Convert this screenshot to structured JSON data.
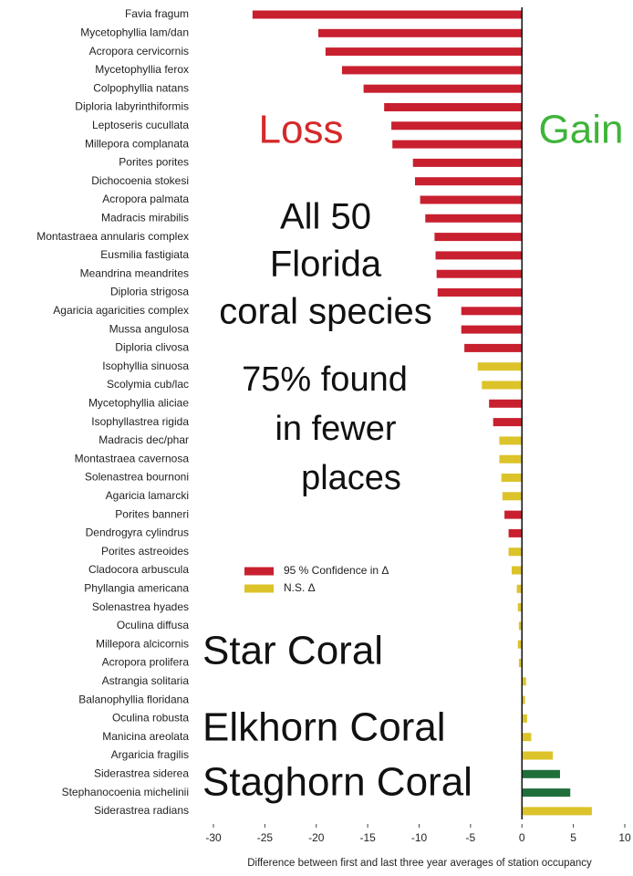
{
  "chart_data": {
    "type": "barh",
    "categories": [
      "Favia fragum",
      "Mycetophyllia lam/dan",
      "Acropora cervicornis",
      "Mycetophyllia ferox",
      "Colpophyllia natans",
      "Diploria labyrinthiformis",
      "Leptoseris cucullata",
      "Millepora complanata",
      "Porites porites",
      "Dichocoenia stokesi",
      "Acropora palmata",
      "Madracis mirabilis",
      "Montastraea annularis complex",
      "Eusmilia fastigiata",
      "Meandrina meandrites",
      "Diploria strigosa",
      "Agaricia agaricities complex",
      "Mussa angulosa",
      "Diploria clivosa",
      "Isophyllia sinuosa",
      "Scolymia cub/lac",
      "Mycetophyllia aliciae",
      "Isophyllastrea rigida",
      "Madracis dec/phar",
      "Montastraea cavernosa",
      "Solenastrea bournoni",
      "Agaricia lamarcki",
      "Porites banneri",
      "Dendrogyra cylindrus",
      "Porites astreoides",
      "Cladocora arbuscula",
      "Phyllangia americana",
      "Solenastrea hyades",
      "Oculina diffusa",
      "Millepora alcicornis",
      "Acropora prolifera",
      "Astrangia solitaria",
      "Balanophyllia floridana",
      "Oculina robusta",
      "Manicina areolata",
      "Argaricia fragilis",
      "Siderastrea siderea",
      "Stephanocoenia michelinii",
      "Siderastrea radians"
    ],
    "values": [
      -26.2,
      -19.8,
      -19.1,
      -17.5,
      -15.4,
      -13.4,
      -12.7,
      -12.6,
      -10.6,
      -10.4,
      -9.9,
      -9.4,
      -8.5,
      -8.4,
      -8.3,
      -8.2,
      -5.9,
      -5.9,
      -5.6,
      -4.3,
      -3.9,
      -3.2,
      -2.8,
      -2.2,
      -2.2,
      -2.0,
      -1.9,
      -1.7,
      -1.3,
      -1.3,
      -1.0,
      -0.5,
      -0.4,
      -0.3,
      -0.4,
      -0.3,
      0.4,
      0.3,
      0.5,
      0.9,
      3.0,
      3.7,
      4.7,
      6.8
    ],
    "colors": [
      "#c8202f",
      "#c8202f",
      "#c8202f",
      "#c8202f",
      "#c8202f",
      "#c8202f",
      "#c8202f",
      "#c8202f",
      "#c8202f",
      "#c8202f",
      "#c8202f",
      "#c8202f",
      "#c8202f",
      "#c8202f",
      "#c8202f",
      "#c8202f",
      "#c8202f",
      "#c8202f",
      "#c8202f",
      "#dcc32a",
      "#dcc32a",
      "#c8202f",
      "#c8202f",
      "#dcc32a",
      "#dcc32a",
      "#dcc32a",
      "#dcc32a",
      "#c8202f",
      "#c8202f",
      "#dcc32a",
      "#dcc32a",
      "#dcc32a",
      "#dcc32a",
      "#dcc32a",
      "#dcc32a",
      "#dcc32a",
      "#dcc32a",
      "#dcc32a",
      "#dcc32a",
      "#dcc32a",
      "#dcc32a",
      "#1f6f3a",
      "#1f6f3a",
      "#dcc32a"
    ],
    "legend": [
      {
        "name": "95 % Confidence in Δ",
        "color": "#c8202f"
      },
      {
        "name": "N.S. Δ",
        "color": "#dcc32a"
      }
    ],
    "xlabel": "Difference between first and last three year averages of station occupancy",
    "xlim": [
      -30,
      10
    ],
    "xticks": [
      -30,
      -25,
      -20,
      -15,
      -10,
      -5,
      0,
      5,
      10
    ],
    "annotations": [
      {
        "lines": [
          "Loss"
        ],
        "color": "#d42a2a"
      },
      {
        "lines": [
          "Gain"
        ],
        "color": "#3fb43a"
      },
      {
        "lines": [
          "All 50",
          "Florida",
          "coral species"
        ],
        "color": "#111111"
      },
      {
        "lines": [
          "75% found",
          "in fewer",
          "places"
        ],
        "color": "#111111"
      },
      {
        "lines": [
          "Star Coral"
        ],
        "color": "#111111"
      },
      {
        "lines": [
          "Elkhorn Coral"
        ],
        "color": "#111111"
      },
      {
        "lines": [
          "Staghorn Coral"
        ],
        "color": "#111111"
      }
    ]
  }
}
